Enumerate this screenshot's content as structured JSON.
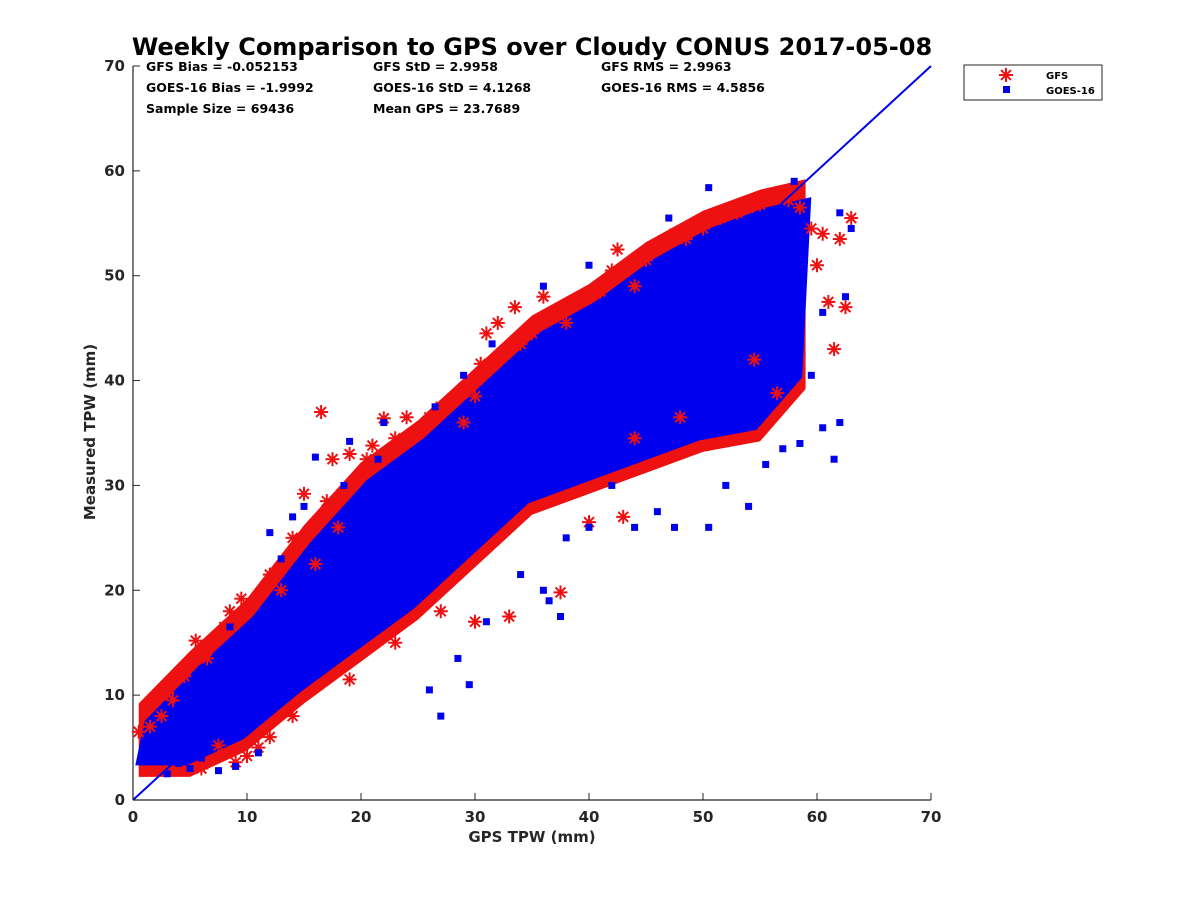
{
  "chart_data": {
    "type": "scatter",
    "title": "Weekly Comparison to GPS over Cloudy CONUS 2017-05-08",
    "xlabel": "GPS TPW (mm)",
    "ylabel": "Measured TPW (mm)",
    "xlim": [
      0,
      70
    ],
    "ylim": [
      0,
      70
    ],
    "x_ticks": [
      "0",
      "10",
      "20",
      "30",
      "40",
      "50",
      "60",
      "70"
    ],
    "y_ticks": [
      "0",
      "10",
      "20",
      "30",
      "40",
      "50",
      "60",
      "70"
    ],
    "grid": false,
    "legend_position": "outside-top-right",
    "stats": [
      "GFS Bias = -0.052153",
      "GFS StD = 2.9958",
      "GFS RMS = 2.9963",
      "GOES-16 Bias = -1.9992",
      "GOES-16 StD = 4.1268",
      "GOES-16 RMS = 4.5856",
      "Sample Size = 69436",
      "Mean GPS = 23.7689"
    ],
    "one_to_one_line": {
      "x": [
        0,
        70
      ],
      "y": [
        0,
        70
      ],
      "color": "#0000ee"
    },
    "series": [
      {
        "name": "GFS",
        "marker": "asterisk",
        "color": "#ee1111",
        "points": [
          [
            0.5,
            6.5
          ],
          [
            1.5,
            7.0
          ],
          [
            2.5,
            8.0
          ],
          [
            3.0,
            10.2
          ],
          [
            3.5,
            9.5
          ],
          [
            4.5,
            11.8
          ],
          [
            5.5,
            15.2
          ],
          [
            6.0,
            3.0
          ],
          [
            6.5,
            13.5
          ],
          [
            7.5,
            5.2
          ],
          [
            8.0,
            16.5
          ],
          [
            8.5,
            18.0
          ],
          [
            9.0,
            3.6
          ],
          [
            9.5,
            19.2
          ],
          [
            10.0,
            4.2
          ],
          [
            11.0,
            5.0
          ],
          [
            12.0,
            21.5
          ],
          [
            13.0,
            20.0
          ],
          [
            14.0,
            25.0
          ],
          [
            15.0,
            29.2
          ],
          [
            16.0,
            22.5
          ],
          [
            16.5,
            37.0
          ],
          [
            17.0,
            28.5
          ],
          [
            17.5,
            32.5
          ],
          [
            18.0,
            26.0
          ],
          [
            19.0,
            33.0
          ],
          [
            19.5,
            30.5
          ],
          [
            20.0,
            31.0
          ],
          [
            20.5,
            32.5
          ],
          [
            21.0,
            33.8
          ],
          [
            22.0,
            36.4
          ],
          [
            23.0,
            34.5
          ],
          [
            24.0,
            36.5
          ],
          [
            25.0,
            35.0
          ],
          [
            26.0,
            36.5
          ],
          [
            27.0,
            37.5
          ],
          [
            28.0,
            38.3
          ],
          [
            29.0,
            36.0
          ],
          [
            30.0,
            38.5
          ],
          [
            30.5,
            41.6
          ],
          [
            31.0,
            44.5
          ],
          [
            32.0,
            45.5
          ],
          [
            33.5,
            47.0
          ],
          [
            34.0,
            43.5
          ],
          [
            35.0,
            44.5
          ],
          [
            36.0,
            48.0
          ],
          [
            37.0,
            46.5
          ],
          [
            37.5,
            19.8
          ],
          [
            38.0,
            45.5
          ],
          [
            39.0,
            47.5
          ],
          [
            40.0,
            26.5
          ],
          [
            41.0,
            48.5
          ],
          [
            42.0,
            50.5
          ],
          [
            42.5,
            52.5
          ],
          [
            43.0,
            27.0
          ],
          [
            44.0,
            49.0
          ],
          [
            45.0,
            51.5
          ],
          [
            46.0,
            52.5
          ],
          [
            47.5,
            54.0
          ],
          [
            48.5,
            53.5
          ],
          [
            50.0,
            54.5
          ],
          [
            51.5,
            55.5
          ],
          [
            53.0,
            56.0
          ],
          [
            54.0,
            56.5
          ],
          [
            55.0,
            56.8
          ],
          [
            56.5,
            38.8
          ],
          [
            57.5,
            57.2
          ],
          [
            58.5,
            56.5
          ],
          [
            59.5,
            54.5
          ],
          [
            60.0,
            51.0
          ],
          [
            60.5,
            54.0
          ],
          [
            61.0,
            47.5
          ],
          [
            61.5,
            43.0
          ],
          [
            62.0,
            53.5
          ],
          [
            63.0,
            55.5
          ],
          [
            62.5,
            47.0
          ],
          [
            54.5,
            42.0
          ],
          [
            48.0,
            36.5
          ],
          [
            44.0,
            34.5
          ],
          [
            33.0,
            17.5
          ],
          [
            30.0,
            17.0
          ],
          [
            27.0,
            18.0
          ],
          [
            23.0,
            15.0
          ],
          [
            19.0,
            11.5
          ],
          [
            14.0,
            8.0
          ],
          [
            12.0,
            6.0
          ]
        ]
      },
      {
        "name": "GOES-16",
        "marker": "square",
        "color": "#0000ee",
        "points": [
          [
            1.0,
            5.0
          ],
          [
            2.0,
            4.0
          ],
          [
            3.0,
            2.5
          ],
          [
            4.0,
            3.5
          ],
          [
            5.0,
            3.0
          ],
          [
            6.0,
            4.0
          ],
          [
            7.5,
            2.8
          ],
          [
            9.0,
            3.2
          ],
          [
            11.0,
            4.5
          ],
          [
            12.0,
            25.5
          ],
          [
            14.0,
            27.0
          ],
          [
            15.0,
            28.0
          ],
          [
            16.0,
            32.7
          ],
          [
            19.0,
            34.2
          ],
          [
            22.0,
            36.0
          ],
          [
            26.0,
            10.5
          ],
          [
            27.0,
            8.0
          ],
          [
            28.5,
            13.5
          ],
          [
            29.5,
            11.0
          ],
          [
            31.0,
            17.0
          ],
          [
            34.0,
            21.5
          ],
          [
            36.0,
            20.0
          ],
          [
            36.5,
            19.0
          ],
          [
            37.5,
            17.5
          ],
          [
            38.0,
            25.0
          ],
          [
            40.0,
            26.0
          ],
          [
            42.0,
            30.0
          ],
          [
            44.0,
            26.0
          ],
          [
            46.0,
            27.5
          ],
          [
            47.5,
            26.0
          ],
          [
            50.5,
            26.0
          ],
          [
            52.0,
            30.0
          ],
          [
            54.0,
            28.0
          ],
          [
            55.5,
            32.0
          ],
          [
            57.0,
            33.5
          ],
          [
            58.5,
            34.0
          ],
          [
            60.5,
            35.5
          ],
          [
            61.5,
            32.5
          ],
          [
            62.0,
            36.0
          ],
          [
            59.5,
            40.5
          ],
          [
            60.5,
            46.5
          ],
          [
            62.5,
            48.0
          ],
          [
            63.0,
            54.5
          ],
          [
            62.0,
            56.0
          ],
          [
            58.0,
            59.0
          ],
          [
            50.5,
            58.4
          ],
          [
            47.0,
            55.5
          ],
          [
            40.0,
            51.0
          ],
          [
            36.0,
            49.0
          ],
          [
            31.5,
            43.5
          ],
          [
            29.0,
            40.5
          ],
          [
            26.5,
            37.5
          ],
          [
            21.5,
            32.5
          ],
          [
            18.5,
            30.0
          ],
          [
            13.0,
            23.0
          ],
          [
            8.5,
            16.5
          ],
          [
            6.0,
            12.5
          ],
          [
            4.0,
            9.0
          ],
          [
            10.0,
            15.0
          ],
          [
            14.0,
            19.0
          ],
          [
            18.0,
            24.0
          ],
          [
            22.0,
            26.5
          ],
          [
            26.0,
            30.0
          ],
          [
            30.0,
            33.0
          ],
          [
            34.0,
            36.0
          ],
          [
            38.0,
            38.5
          ],
          [
            42.0,
            40.5
          ],
          [
            46.0,
            43.0
          ],
          [
            50.0,
            45.0
          ],
          [
            54.0,
            47.5
          ],
          [
            57.0,
            50.0
          ],
          [
            20.0,
            19.0
          ],
          [
            24.0,
            22.5
          ],
          [
            28.0,
            27.0
          ],
          [
            32.0,
            30.5
          ],
          [
            44.0,
            38.0
          ],
          [
            48.0,
            41.5
          ],
          [
            52.0,
            44.0
          ]
        ]
      }
    ]
  }
}
